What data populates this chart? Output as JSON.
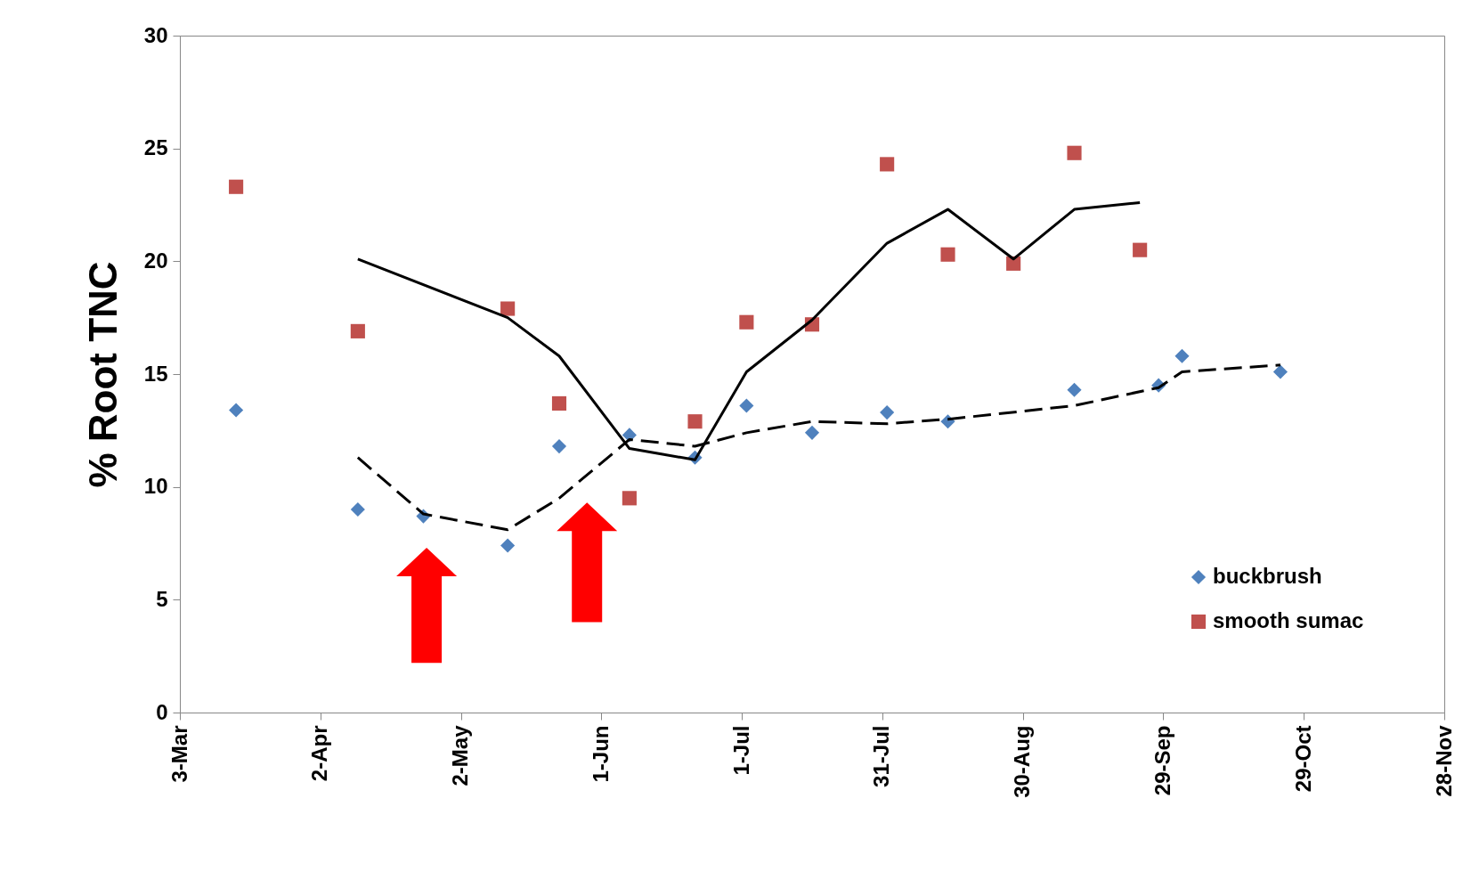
{
  "chart_data": {
    "type": "scatter",
    "ylabel": "% Root TNC",
    "xlim": [
      "--03-03",
      "--11-28"
    ],
    "xticks": [
      {
        "value": "--03-03",
        "label": "3-Mar"
      },
      {
        "value": "--04-02",
        "label": "2-Apr"
      },
      {
        "value": "--05-02",
        "label": "2-May"
      },
      {
        "value": "--06-01",
        "label": "1-Jun"
      },
      {
        "value": "--07-01",
        "label": "1-Jul"
      },
      {
        "value": "--07-31",
        "label": "31-Jul"
      },
      {
        "value": "--08-30",
        "label": "30-Aug"
      },
      {
        "value": "--09-29",
        "label": "29-Sep"
      },
      {
        "value": "--10-29",
        "label": "29-Oct"
      },
      {
        "value": "--11-28",
        "label": "28-Nov"
      }
    ],
    "ylim": [
      0,
      30
    ],
    "yticks": [
      0,
      5,
      10,
      15,
      20,
      25,
      30
    ],
    "grid": false,
    "legend": "bottom right",
    "series": [
      {
        "name": "buckbrush",
        "type": "scatter",
        "marker": "diamond",
        "color": "#4f81bd",
        "x": [
          "--03-15",
          "--04-10",
          "--04-24",
          "--05-12",
          "--05-23",
          "--06-07",
          "--06-21",
          "--07-02",
          "--07-16",
          "--08-01",
          "--08-14",
          "--09-10",
          "--09-28",
          "--10-03",
          "--10-24"
        ],
        "values": [
          13.4,
          9.0,
          8.7,
          7.4,
          11.8,
          12.3,
          11.3,
          13.6,
          12.4,
          13.3,
          12.9,
          14.3,
          14.5,
          15.8,
          15.1
        ]
      },
      {
        "name": "smooth sumac",
        "type": "scatter",
        "marker": "square",
        "color": "#c0504d",
        "x": [
          "--03-15",
          "--04-10",
          "--05-12",
          "--05-23",
          "--06-07",
          "--06-21",
          "--07-02",
          "--07-16",
          "--08-01",
          "--08-14",
          "--08-28",
          "--09-10",
          "--09-24"
        ],
        "values": [
          23.3,
          16.9,
          17.9,
          13.7,
          9.5,
          12.9,
          17.3,
          17.2,
          24.3,
          20.3,
          19.9,
          24.8,
          20.5
        ]
      },
      {
        "type": "line",
        "line_style": "solid",
        "color": "#000000",
        "x": [
          "--04-10",
          "--05-12",
          "--05-23",
          "--06-07",
          "--06-21",
          "--07-02",
          "--07-16",
          "--08-01",
          "--08-14",
          "--08-28",
          "--09-10",
          "--09-24"
        ],
        "values": [
          20.1,
          17.5,
          15.8,
          11.7,
          11.2,
          15.1,
          17.4,
          20.8,
          22.3,
          20.1,
          22.3,
          22.6
        ]
      },
      {
        "type": "line",
        "line_style": "dashed",
        "color": "#000000",
        "x": [
          "--04-10",
          "--04-24",
          "--05-12",
          "--05-23",
          "--06-07",
          "--06-21",
          "--07-02",
          "--07-16",
          "--08-01",
          "--08-14",
          "--09-10",
          "--09-28",
          "--10-03",
          "--10-24"
        ],
        "values": [
          11.3,
          8.8,
          8.1,
          9.5,
          12.1,
          11.8,
          12.4,
          12.9,
          12.8,
          13.0,
          13.6,
          14.4,
          15.1,
          15.4
        ]
      }
    ]
  }
}
